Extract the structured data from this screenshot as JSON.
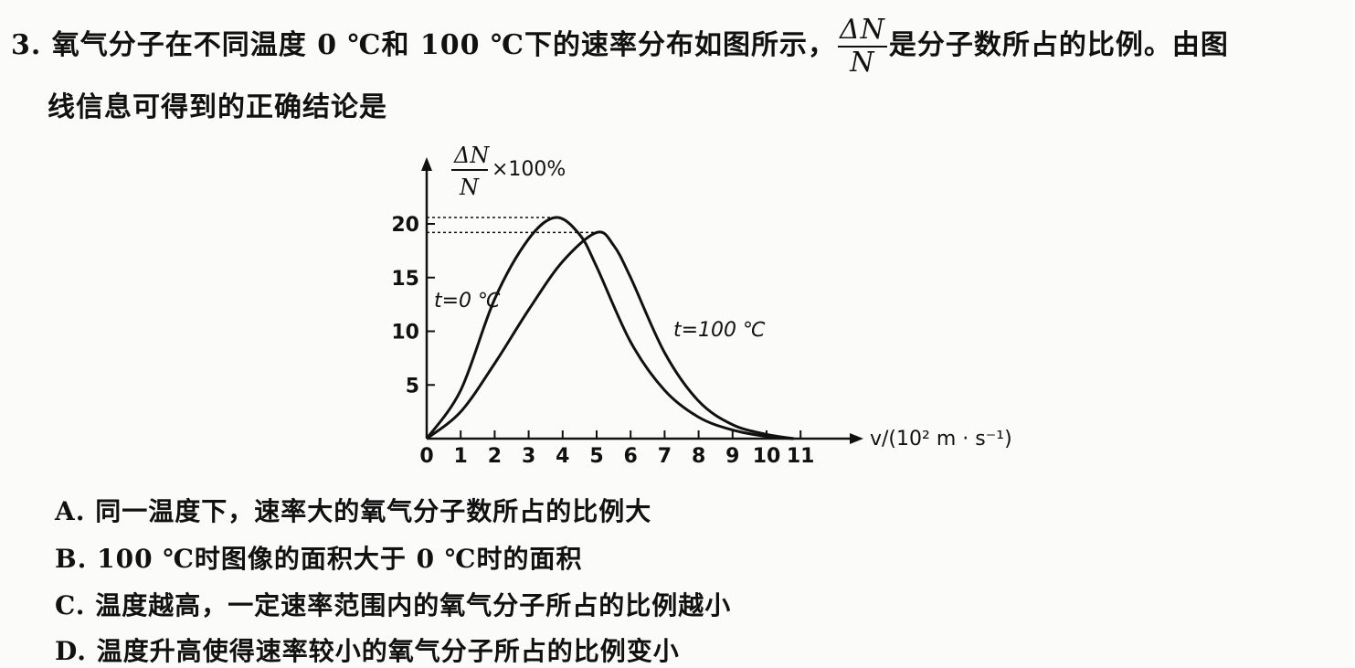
{
  "question": {
    "number": "3.",
    "line1_a": "氧气分子在不同温度 0 ℃和 100 ℃下的速率分布如图所示，",
    "frac_num": "ΔN",
    "frac_den": "N",
    "line1_b": "是分子数所占的比例。由图",
    "line2": "线信息可得到的正确结论是"
  },
  "options": {
    "A": "A. 同一温度下，速率大的氧气分子数所占的比例大",
    "B": "B. 100 ℃时图像的面积大于 0 ℃时的面积",
    "C": "C. 温度越高，一定速率范围内的氧气分子所占的比例越小",
    "D": "D. 温度升高使得速率较小的氧气分子所占的比例变小"
  },
  "chart_data": {
    "type": "line",
    "ylabel_num": "ΔN",
    "ylabel_den": "N",
    "ylabel_suffix": "×100%",
    "xlabel": "v/(10² m · s⁻¹)",
    "x_ticks": [
      "0",
      "1",
      "2",
      "3",
      "4",
      "5",
      "6",
      "7",
      "8",
      "9",
      "10",
      "11"
    ],
    "y_ticks": [
      "5",
      "10",
      "15",
      "20"
    ],
    "xlim": [
      0,
      11
    ],
    "ylim": [
      0,
      20.7
    ],
    "series": [
      {
        "name": "t=0 ℃",
        "x": [
          0,
          1,
          2,
          3,
          3.8,
          4.5,
          5,
          6,
          7,
          8,
          9,
          10,
          10.8
        ],
        "y": [
          0,
          4.5,
          13,
          18.6,
          20.6,
          19,
          16,
          9,
          4.5,
          2,
          0.8,
          0.2,
          0
        ]
      },
      {
        "name": "t=100 ℃",
        "x": [
          0,
          1,
          2,
          3,
          4,
          5,
          5.5,
          6,
          7,
          8,
          9,
          10,
          10.8
        ],
        "y": [
          0,
          2.5,
          7,
          12,
          16.5,
          19.2,
          18,
          15,
          8,
          3.5,
          1.3,
          0.4,
          0
        ]
      }
    ],
    "peak_lines": [
      20.6,
      19.2
    ]
  }
}
